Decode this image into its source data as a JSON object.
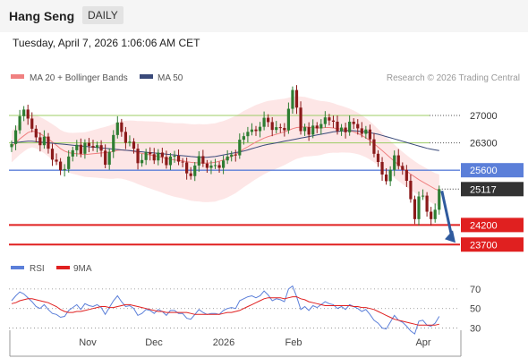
{
  "header": {
    "title": "Hang Seng",
    "timeframe": "DAILY"
  },
  "timestamp": "Tuesday, April 7, 2026 1:06:06 AM CET",
  "legend": {
    "bollinger_label": "MA 20 + Bollinger Bands",
    "ma50_label": "MA 50",
    "credit": "Research © 2026 Trading Central",
    "rsi_label": "RSI",
    "rsi_ma_label": "9MA"
  },
  "colors": {
    "up": "#2e7d32",
    "down": "#8b1a1a",
    "bollinger_fill": "#fde2e2",
    "bollinger_line": "#f08080",
    "ma50": "#3a4a7a",
    "resistance_green": "#9ccc65",
    "pivot_blue": "#5b7fd9",
    "support_red": "#e02020",
    "price_tag": "#333333",
    "arrow": "#2f5a9e",
    "rsi": "#5b7fd9",
    "rsi_ma": "#e02020"
  },
  "chart_data": [
    {
      "type": "candlestick",
      "title": "",
      "x_labels": [
        "Nov",
        "Dec",
        "2026",
        "Feb",
        "Apr"
      ],
      "y_ticks": [
        23700,
        24200,
        25117,
        25600,
        26300,
        27000
      ],
      "ylim": [
        23500,
        27800
      ],
      "levels": [
        {
          "label": "27000",
          "value": 27000,
          "role": "resistance"
        },
        {
          "label": "26300",
          "value": 26300,
          "role": "resistance"
        },
        {
          "label": "25600",
          "value": 25600,
          "role": "pivot"
        },
        {
          "label": "25117",
          "value": 25117,
          "role": "last-price"
        },
        {
          "label": "24200",
          "value": 24200,
          "role": "support"
        },
        {
          "label": "23700",
          "value": 23700,
          "role": "support"
        }
      ],
      "closes": [
        26270,
        26620,
        26980,
        27150,
        26920,
        26660,
        26440,
        26240,
        26460,
        26150,
        25870,
        25820,
        25600,
        25630,
        25950,
        26110,
        26250,
        26020,
        26300,
        26220,
        26180,
        26240,
        26100,
        25740,
        26070,
        26500,
        26820,
        26580,
        26300,
        26330,
        26150,
        25780,
        25860,
        26060,
        26010,
        25850,
        26050,
        25940,
        25730,
        25950,
        25970,
        25820,
        25800,
        25520,
        25450,
        25720,
        25960,
        25770,
        25660,
        25720,
        25730,
        25660,
        25850,
        25950,
        26000,
        25980,
        26380,
        26470,
        26580,
        26640,
        26600,
        26710,
        26940,
        26830,
        26630,
        26700,
        26680,
        26620,
        27170,
        27650,
        27200,
        26600,
        26700,
        26510,
        26740,
        26670,
        26780,
        26950,
        26870,
        26840,
        26600,
        26690,
        26570,
        26840,
        26780,
        26670,
        26530,
        26640,
        26390,
        26020,
        25810,
        25490,
        25320,
        25610,
        25980,
        25710,
        25610,
        25330,
        24860,
        24350,
        24930,
        24950,
        24540,
        24350,
        24590,
        25117
      ],
      "ma20": [
        26200,
        26300,
        26400,
        26480,
        26560,
        26600,
        26580,
        26530,
        26470,
        26400,
        26320,
        26240,
        26150,
        26090,
        26050,
        26030,
        26020,
        26010,
        26000,
        26010,
        26020,
        26030,
        26040,
        26050,
        26060,
        26080,
        26110,
        26120,
        26110,
        26100,
        26080,
        26050,
        26030,
        26010,
        25990,
        25970,
        25950,
        25930,
        25900,
        25880,
        25860,
        25850,
        25840,
        25820,
        25800,
        25790,
        25790,
        25780,
        25780,
        25790,
        25800,
        25830,
        25860,
        25900,
        25950,
        26000,
        26070,
        26140,
        26200,
        26260,
        26320,
        26370,
        26420,
        26460,
        26490,
        26520,
        26550,
        26580,
        26620,
        26660,
        26690,
        26700,
        26710,
        26700,
        26690,
        26680,
        26680,
        26690,
        26690,
        26680,
        26660,
        26650,
        26630,
        26610,
        26580,
        26540,
        26490,
        26430,
        26360,
        26280,
        26190,
        26100,
        26010,
        25920,
        25830,
        25740,
        25660,
        25580,
        25500,
        25430,
        25360,
        25300,
        25240,
        25180,
        25120,
        25080
      ],
      "ma50": [
        26300,
        26310,
        26320,
        26330,
        26340,
        26340,
        26330,
        26320,
        26310,
        26300,
        26290,
        26280,
        26270,
        26260,
        26250,
        26240,
        26230,
        26220,
        26210,
        26200,
        26190,
        26180,
        26170,
        26160,
        26150,
        26140,
        26130,
        26120,
        26110,
        26100,
        26090,
        26080,
        26070,
        26060,
        26050,
        26040,
        26030,
        26020,
        26010,
        26000,
        25990,
        25980,
        25970,
        25960,
        25950,
        25940,
        25930,
        25930,
        25930,
        25940,
        25950,
        25970,
        25990,
        26010,
        26030,
        26050,
        26070,
        26090,
        26120,
        26150,
        26180,
        26210,
        26240,
        26260,
        26280,
        26300,
        26320,
        26340,
        26360,
        26380,
        26400,
        26420,
        26440,
        26460,
        26480,
        26500,
        26520,
        26540,
        26560,
        26580,
        26590,
        26600,
        26610,
        26610,
        26610,
        26600,
        26590,
        26580,
        26560,
        26540,
        26520,
        26490,
        26460,
        26430,
        26400,
        26370,
        26340,
        26310,
        26280,
        26250,
        26220,
        26190,
        26160,
        26140,
        26120,
        26100
      ]
    },
    {
      "type": "line",
      "title": "",
      "x_labels": [
        "Nov",
        "Dec",
        "2026",
        "Feb",
        "Apr"
      ],
      "y_ticks": [
        30,
        50,
        70
      ],
      "ylim": [
        25,
        80
      ],
      "series": [
        {
          "name": "RSI",
          "values": [
            58,
            63,
            67,
            65,
            61,
            57,
            52,
            50,
            54,
            49,
            45,
            44,
            41,
            42,
            48,
            51,
            54,
            49,
            55,
            53,
            52,
            54,
            51,
            44,
            51,
            58,
            63,
            57,
            52,
            53,
            50,
            43,
            45,
            49,
            48,
            45,
            49,
            47,
            43,
            48,
            48,
            45,
            45,
            40,
            39,
            44,
            49,
            46,
            44,
            45,
            45,
            44,
            48,
            50,
            51,
            50,
            58,
            60,
            62,
            63,
            61,
            63,
            68,
            64,
            58,
            60,
            59,
            57,
            70,
            73,
            62,
            49,
            52,
            48,
            53,
            51,
            54,
            57,
            55,
            54,
            50,
            52,
            49,
            54,
            52,
            50,
            47,
            49,
            44,
            38,
            35,
            30,
            29,
            36,
            43,
            38,
            36,
            32,
            27,
            24,
            37,
            38,
            33,
            32,
            35,
            42
          ]
        },
        {
          "name": "9MA",
          "values": [
            55,
            56,
            58,
            59,
            60,
            60,
            59,
            58,
            57,
            56,
            54,
            52,
            49,
            47,
            46,
            46,
            47,
            47,
            48,
            49,
            50,
            51,
            52,
            52,
            51,
            51,
            52,
            53,
            54,
            54,
            53,
            52,
            51,
            50,
            49,
            48,
            47,
            47,
            46,
            46,
            46,
            46,
            46,
            46,
            45,
            44,
            44,
            44,
            44,
            44,
            44,
            44,
            45,
            46,
            46,
            47,
            48,
            50,
            52,
            54,
            56,
            58,
            60,
            61,
            61,
            61,
            61,
            60,
            61,
            62,
            62,
            60,
            59,
            57,
            56,
            55,
            54,
            53,
            53,
            53,
            53,
            53,
            53,
            53,
            52,
            52,
            51,
            51,
            50,
            49,
            47,
            45,
            43,
            41,
            39,
            38,
            37,
            36,
            35,
            34,
            33,
            33,
            33,
            33,
            33,
            34
          ]
        }
      ]
    }
  ]
}
